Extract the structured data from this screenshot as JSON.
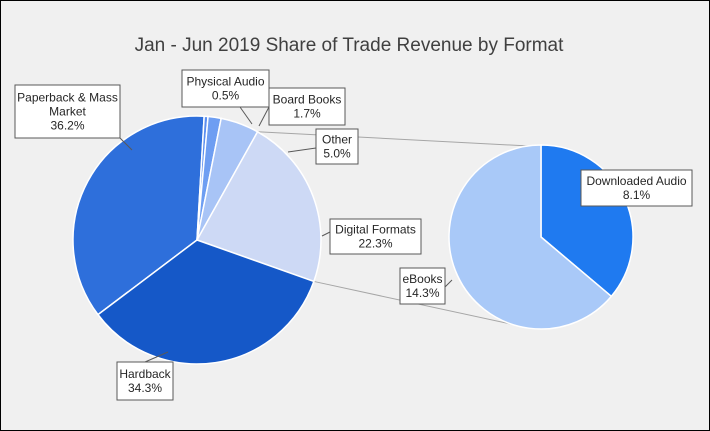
{
  "chart_data": {
    "type": "pie",
    "subtype": "pie-of-pie",
    "title": "Jan - Jun 2019 Share of Trade Revenue by Format",
    "main_pie": {
      "slices": [
        {
          "name": "Paperback & Mass Market",
          "label_lines": [
            "Paperback & Mass",
            "Market"
          ],
          "value": 36.2,
          "display": "36.2%",
          "color": "#2e6fdb"
        },
        {
          "name": "Physical Audio",
          "label_lines": [
            "Physical Audio"
          ],
          "value": 0.5,
          "display": "0.5%",
          "color": "#5b8ff0"
        },
        {
          "name": "Board Books",
          "label_lines": [
            "Board Books"
          ],
          "value": 1.7,
          "display": "1.7%",
          "color": "#6e9ef2"
        },
        {
          "name": "Other",
          "label_lines": [
            "Other"
          ],
          "value": 5.0,
          "display": "5.0%",
          "color": "#a8c4f6"
        },
        {
          "name": "Digital Formats",
          "label_lines": [
            "Digital Formats"
          ],
          "value": 22.3,
          "display": "22.3%",
          "color": "#cdd9f5"
        },
        {
          "name": "Hardback",
          "label_lines": [
            "Hardback"
          ],
          "value": 34.3,
          "display": "34.3%",
          "color": "#1558c8"
        }
      ]
    },
    "secondary_pie": {
      "of": "Digital Formats",
      "slices": [
        {
          "name": "Downloaded Audio",
          "label_lines": [
            "Downloaded Audio"
          ],
          "value": 8.1,
          "display": "8.1%",
          "color": "#1f7af0"
        },
        {
          "name": "eBooks",
          "label_lines": [
            "eBooks"
          ],
          "value": 14.3,
          "display": "14.3%",
          "color": "#a9c9f8"
        }
      ]
    },
    "legend": "none",
    "data_labels": "callout boxes with leader lines"
  }
}
